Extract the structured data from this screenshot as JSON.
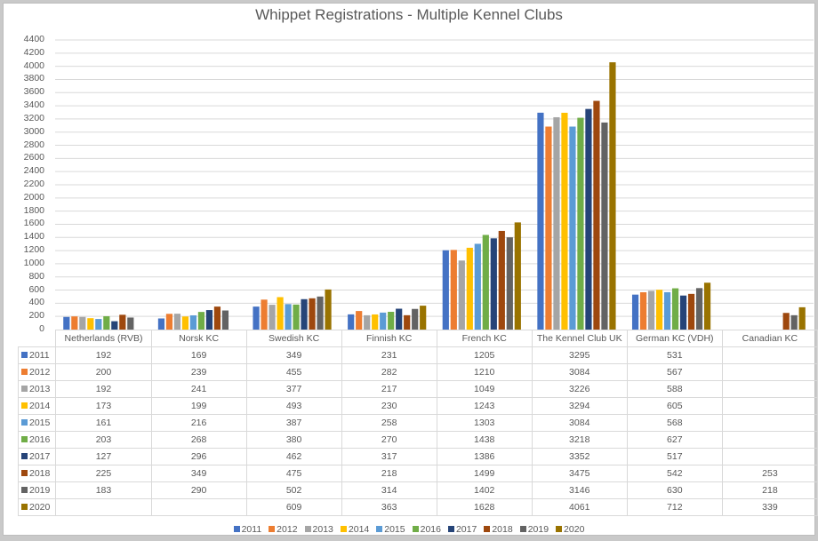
{
  "chart_data": {
    "type": "bar",
    "title": "Whippet Registrations - Multiple Kennel Clubs",
    "xlabel": "",
    "ylabel": "",
    "ylim": [
      0,
      4400
    ],
    "yticks": [
      0,
      200,
      400,
      600,
      800,
      1000,
      1200,
      1400,
      1600,
      1800,
      2000,
      2200,
      2400,
      2600,
      2800,
      3000,
      3200,
      3400,
      3600,
      3800,
      4000,
      4200,
      4400
    ],
    "grid": true,
    "legend_position": "bottom",
    "data_table": true,
    "categories": [
      "Netherlands (RVB)",
      "Norsk KC",
      "Swedish KC",
      "Finnish KC",
      "French KC",
      "The Kennel Club UK",
      "German KC (VDH)",
      "Canadian KC"
    ],
    "series": [
      {
        "name": "2011",
        "color": "#4472c4",
        "values": [
          192,
          169,
          349,
          231,
          1205,
          3295,
          531,
          null
        ]
      },
      {
        "name": "2012",
        "color": "#ed7d31",
        "values": [
          200,
          239,
          455,
          282,
          1210,
          3084,
          567,
          null
        ]
      },
      {
        "name": "2013",
        "color": "#a5a5a5",
        "values": [
          192,
          241,
          377,
          217,
          1049,
          3226,
          588,
          null
        ]
      },
      {
        "name": "2014",
        "color": "#ffc000",
        "values": [
          173,
          199,
          493,
          230,
          1243,
          3294,
          605,
          null
        ]
      },
      {
        "name": "2015",
        "color": "#5b9bd5",
        "values": [
          161,
          216,
          387,
          258,
          1303,
          3084,
          568,
          null
        ]
      },
      {
        "name": "2016",
        "color": "#70ad47",
        "values": [
          203,
          268,
          380,
          270,
          1438,
          3218,
          627,
          null
        ]
      },
      {
        "name": "2017",
        "color": "#264478",
        "values": [
          127,
          296,
          462,
          317,
          1386,
          3352,
          517,
          null
        ]
      },
      {
        "name": "2018",
        "color": "#9e480e",
        "values": [
          225,
          349,
          475,
          218,
          1499,
          3475,
          542,
          253
        ]
      },
      {
        "name": "2019",
        "color": "#636363",
        "values": [
          183,
          290,
          502,
          314,
          1402,
          3146,
          630,
          218
        ]
      },
      {
        "name": "2020",
        "color": "#997300",
        "values": [
          null,
          null,
          609,
          363,
          1628,
          4061,
          712,
          339
        ]
      }
    ]
  }
}
